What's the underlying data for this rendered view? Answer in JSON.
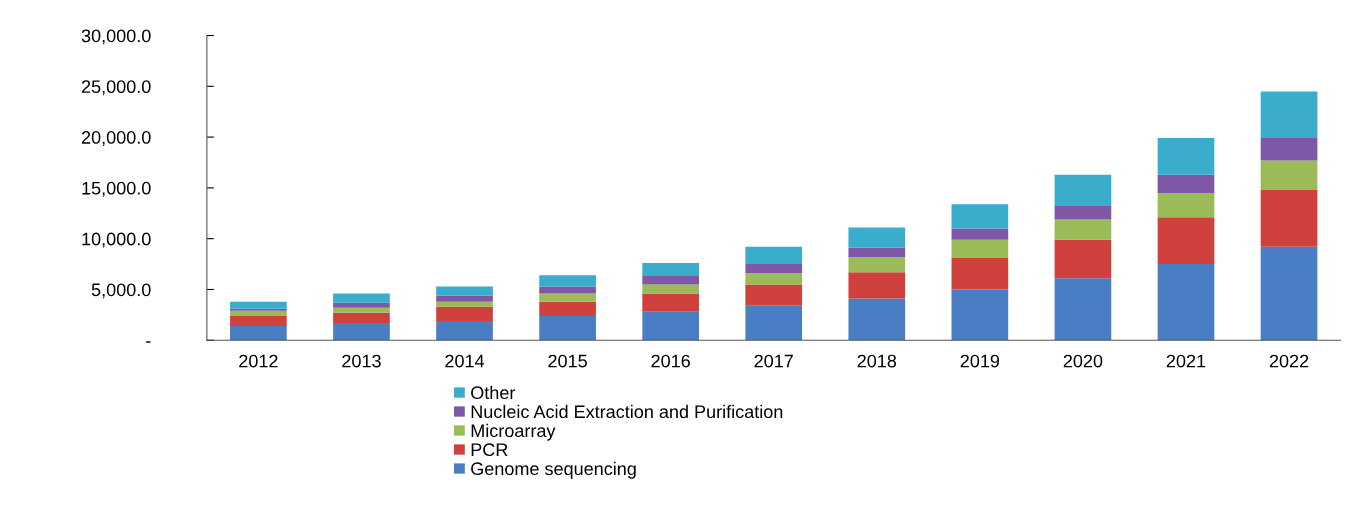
{
  "chart_data": {
    "type": "bar",
    "stacked": true,
    "categories": [
      "2012",
      "2013",
      "2014",
      "2015",
      "2016",
      "2017",
      "2018",
      "2019",
      "2020",
      "2021",
      "2022"
    ],
    "series": [
      {
        "name": "Genome sequencing",
        "color": "#4a7ec4",
        "values": [
          1400,
          1700,
          1900,
          2400,
          2800,
          3400,
          4100,
          5000,
          6100,
          7500,
          9200
        ]
      },
      {
        "name": "PCR",
        "color": "#d0413e",
        "values": [
          1000,
          1000,
          1400,
          1400,
          1800,
          2100,
          2600,
          3100,
          3800,
          4600,
          5600
        ]
      },
      {
        "name": "Microarray",
        "color": "#9bbb59",
        "values": [
          500,
          500,
          500,
          800,
          900,
          1100,
          1500,
          1800,
          2000,
          2400,
          2900
        ]
      },
      {
        "name": "Nucleic Acid Extraction and Purification",
        "color": "#7e57a6",
        "values": [
          200,
          500,
          600,
          700,
          900,
          900,
          900,
          1100,
          1400,
          1800,
          2200
        ]
      },
      {
        "name": "Other",
        "color": "#3aaccc",
        "values": [
          700,
          900,
          900,
          1100,
          1200,
          1700,
          2000,
          2400,
          3000,
          3600,
          4600
        ]
      }
    ],
    "ylim": [
      0,
      30000
    ],
    "yticks": [
      {
        "value": 0,
        "label": "-"
      },
      {
        "value": 5000,
        "label": "5,000.0"
      },
      {
        "value": 10000,
        "label": "10,000.0"
      },
      {
        "value": 15000,
        "label": "15,000.0"
      },
      {
        "value": 20000,
        "label": "20,000.0"
      },
      {
        "value": 25000,
        "label": "25,000.0"
      },
      {
        "value": 30000,
        "label": "30,000.0"
      }
    ],
    "grid": false,
    "legend": "bottom"
  }
}
